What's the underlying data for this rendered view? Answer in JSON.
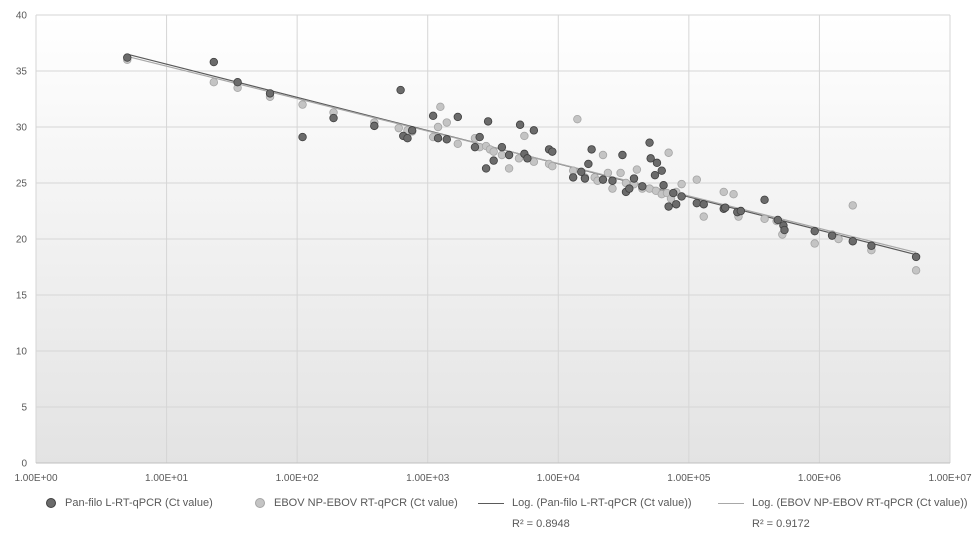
{
  "chart_data": {
    "type": "scatter",
    "x_scale": "log",
    "xlim": [
      1,
      10000000
    ],
    "ylim": [
      0,
      40
    ],
    "x_tick_labels": [
      "1.00E+00",
      "1.00E+01",
      "1.00E+02",
      "1.00E+03",
      "1.00E+04",
      "1.00E+05",
      "1.00E+06",
      "1.00E+07"
    ],
    "x_ticks": [
      1,
      10,
      100,
      1000,
      10000,
      100000,
      1000000,
      10000000
    ],
    "y_ticks": [
      0,
      5,
      10,
      15,
      20,
      25,
      30,
      35,
      40
    ],
    "grid": true,
    "legend_position": "bottom",
    "series": [
      {
        "name": "Pan-filo L-RT-qPCR (Ct value)",
        "color": "#6b6b6b",
        "points": [
          [
            5,
            36.2
          ],
          [
            23,
            35.8
          ],
          [
            35,
            34
          ],
          [
            62,
            33
          ],
          [
            110,
            29.1
          ],
          [
            190,
            30.8
          ],
          [
            390,
            30.1
          ],
          [
            620,
            33.3
          ],
          [
            650,
            29.2
          ],
          [
            700,
            29
          ],
          [
            760,
            29.7
          ],
          [
            1100,
            31
          ],
          [
            1200,
            29
          ],
          [
            1400,
            28.9
          ],
          [
            1700,
            30.9
          ],
          [
            2300,
            28.2
          ],
          [
            2500,
            29.1
          ],
          [
            2800,
            26.3
          ],
          [
            2900,
            30.5
          ],
          [
            3200,
            27
          ],
          [
            3700,
            28.2
          ],
          [
            4200,
            27.5
          ],
          [
            5100,
            30.2
          ],
          [
            5500,
            27.6
          ],
          [
            5800,
            27.2
          ],
          [
            6500,
            29.7
          ],
          [
            8500,
            28
          ],
          [
            9000,
            27.8
          ],
          [
            13000,
            25.5
          ],
          [
            15000,
            26
          ],
          [
            16000,
            25.4
          ],
          [
            17000,
            26.7
          ],
          [
            18000,
            28
          ],
          [
            22000,
            25.3
          ],
          [
            26000,
            25.2
          ],
          [
            31000,
            27.5
          ],
          [
            33000,
            24.2
          ],
          [
            35000,
            24.5
          ],
          [
            38000,
            25.4
          ],
          [
            44000,
            24.7
          ],
          [
            50000,
            28.6
          ],
          [
            51000,
            27.2
          ],
          [
            55000,
            25.7
          ],
          [
            57000,
            26.8
          ],
          [
            62000,
            26.1
          ],
          [
            64000,
            24.8
          ],
          [
            70000,
            22.9
          ],
          [
            76000,
            24.1
          ],
          [
            80000,
            23.1
          ],
          [
            88000,
            23.8
          ],
          [
            115000,
            23.2
          ],
          [
            130000,
            23.1
          ],
          [
            185000,
            22.7
          ],
          [
            190000,
            22.8
          ],
          [
            235000,
            22.4
          ],
          [
            250000,
            22.5
          ],
          [
            380000,
            23.5
          ],
          [
            480000,
            21.7
          ],
          [
            530000,
            21.2
          ],
          [
            540000,
            20.8
          ],
          [
            920000,
            20.7
          ],
          [
            1250000,
            20.3
          ],
          [
            1800000,
            19.8
          ],
          [
            2500000,
            19.4
          ],
          [
            5500000,
            18.4
          ]
        ],
        "trendline": {
          "type": "log",
          "name": "Log. (Pan-filo L-RT-qPCR (Ct value))",
          "r2_label": "R² = 0.8948",
          "color": "#5a5a5a",
          "from": [
            5,
            36.5
          ],
          "to": [
            5500000,
            18.6
          ]
        }
      },
      {
        "name": "EBOV NP-EBOV RT-qPCR (Ct value)",
        "color": "#c4c4c4",
        "points": [
          [
            5,
            36
          ],
          [
            23,
            34
          ],
          [
            35,
            33.5
          ],
          [
            62,
            32.7
          ],
          [
            110,
            32
          ],
          [
            190,
            31.3
          ],
          [
            390,
            30.4
          ],
          [
            600,
            29.9
          ],
          [
            700,
            29.7
          ],
          [
            760,
            29.6
          ],
          [
            1100,
            29.1
          ],
          [
            1200,
            30
          ],
          [
            1250,
            31.8
          ],
          [
            1400,
            30.4
          ],
          [
            1700,
            28.5
          ],
          [
            2300,
            29
          ],
          [
            2500,
            28.2
          ],
          [
            2800,
            28.3
          ],
          [
            3000,
            28
          ],
          [
            3200,
            27.8
          ],
          [
            3700,
            27.5
          ],
          [
            4200,
            26.3
          ],
          [
            5000,
            27.2
          ],
          [
            5500,
            29.2
          ],
          [
            6500,
            26.9
          ],
          [
            8500,
            26.7
          ],
          [
            9000,
            26.5
          ],
          [
            13000,
            26.1
          ],
          [
            14000,
            30.7
          ],
          [
            16000,
            25.5
          ],
          [
            19000,
            25.5
          ],
          [
            20000,
            25.2
          ],
          [
            22000,
            27.5
          ],
          [
            24000,
            25.9
          ],
          [
            26000,
            24.5
          ],
          [
            30000,
            25.9
          ],
          [
            33000,
            25
          ],
          [
            38000,
            24.9
          ],
          [
            40000,
            26.2
          ],
          [
            44000,
            24.5
          ],
          [
            50000,
            24.5
          ],
          [
            56000,
            24.3
          ],
          [
            62000,
            24
          ],
          [
            68000,
            24.1
          ],
          [
            70000,
            27.7
          ],
          [
            73000,
            23.6
          ],
          [
            80000,
            24.2
          ],
          [
            88000,
            24.9
          ],
          [
            115000,
            25.3
          ],
          [
            130000,
            22
          ],
          [
            185000,
            24.2
          ],
          [
            220000,
            24
          ],
          [
            240000,
            22
          ],
          [
            380000,
            21.8
          ],
          [
            470000,
            21.6
          ],
          [
            520000,
            20.4
          ],
          [
            920000,
            19.6
          ],
          [
            1250000,
            20.4
          ],
          [
            1400000,
            20
          ],
          [
            1800000,
            23
          ],
          [
            2500000,
            19
          ],
          [
            5500000,
            17.2
          ]
        ],
        "trendline": {
          "type": "log",
          "name": "Log. (EBOV NP-EBOV RT-qPCR (Ct value))",
          "r2_label": "R² = 0.9172",
          "color": "#a8a8a8",
          "from": [
            5,
            36.3
          ],
          "to": [
            5500000,
            18.8
          ]
        }
      }
    ]
  },
  "legend": {
    "item1": "Pan-filo L-RT-qPCR (Ct value)",
    "item2": "EBOV NP-EBOV RT-qPCR (Ct value)",
    "item3": "Log. (Pan-filo L-RT-qPCR (Ct value))",
    "item4": "Log. (EBOV NP-EBOV RT-qPCR (Ct value))",
    "r2_1": "R² = 0.8948",
    "r2_2": "R² = 0.9172"
  }
}
